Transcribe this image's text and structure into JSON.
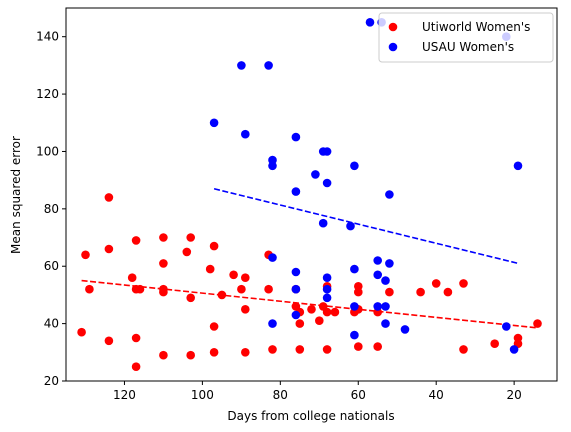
{
  "chart_data": {
    "type": "scatter",
    "title": "",
    "xlabel": "Days from college nationals",
    "ylabel": "Mean squared error",
    "xlim": [
      135,
      9
    ],
    "ylim": [
      20,
      150
    ],
    "x_inverted": true,
    "x_ticks": [
      120,
      100,
      80,
      60,
      40,
      20
    ],
    "y_ticks": [
      20,
      40,
      60,
      80,
      100,
      120,
      140
    ],
    "grid": false,
    "legend_position": "top-right",
    "series": [
      {
        "name": "Utiworld Women's",
        "color": "#ff0000",
        "points": [
          [
            131,
            37
          ],
          [
            130,
            64
          ],
          [
            129,
            52
          ],
          [
            124,
            84
          ],
          [
            124,
            66
          ],
          [
            124,
            34
          ],
          [
            118,
            56
          ],
          [
            117,
            69
          ],
          [
            117,
            52
          ],
          [
            117,
            35
          ],
          [
            117,
            25
          ],
          [
            116,
            52
          ],
          [
            110,
            70
          ],
          [
            110,
            61
          ],
          [
            110,
            52
          ],
          [
            110,
            51
          ],
          [
            110,
            29
          ],
          [
            104,
            65
          ],
          [
            103,
            70
          ],
          [
            103,
            49
          ],
          [
            103,
            29
          ],
          [
            98,
            59
          ],
          [
            97,
            67
          ],
          [
            97,
            39
          ],
          [
            97,
            30
          ],
          [
            95,
            50
          ],
          [
            92,
            57
          ],
          [
            90,
            52
          ],
          [
            89,
            56
          ],
          [
            89,
            45
          ],
          [
            89,
            30
          ],
          [
            83,
            64
          ],
          [
            83,
            52
          ],
          [
            82,
            31
          ],
          [
            76,
            52
          ],
          [
            76,
            46
          ],
          [
            75,
            44
          ],
          [
            75,
            40
          ],
          [
            75,
            31
          ],
          [
            72,
            45
          ],
          [
            70,
            41
          ],
          [
            69,
            46
          ],
          [
            68,
            44
          ],
          [
            68,
            53
          ],
          [
            68,
            31
          ],
          [
            66,
            44
          ],
          [
            61,
            44
          ],
          [
            60,
            53
          ],
          [
            60,
            51
          ],
          [
            60,
            45
          ],
          [
            60,
            32
          ],
          [
            55,
            44
          ],
          [
            55,
            32
          ],
          [
            52,
            51
          ],
          [
            44,
            51
          ],
          [
            40,
            54
          ],
          [
            37,
            51
          ],
          [
            33,
            54
          ],
          [
            33,
            31
          ],
          [
            25,
            33
          ],
          [
            19,
            35
          ],
          [
            19,
            33
          ],
          [
            14,
            40
          ]
        ],
        "trend": {
          "x": [
            131,
            14
          ],
          "y": [
            55,
            38.5
          ]
        }
      },
      {
        "name": "USAU Women's",
        "color": "#0000ff",
        "points": [
          [
            97,
            110
          ],
          [
            90,
            130
          ],
          [
            89,
            106
          ],
          [
            83,
            130
          ],
          [
            82,
            97
          ],
          [
            82,
            95
          ],
          [
            82,
            63
          ],
          [
            82,
            40
          ],
          [
            76,
            105
          ],
          [
            76,
            86
          ],
          [
            76,
            58
          ],
          [
            76,
            52
          ],
          [
            76,
            43
          ],
          [
            71,
            92
          ],
          [
            69,
            100
          ],
          [
            68,
            100
          ],
          [
            68,
            89
          ],
          [
            68,
            56
          ],
          [
            68,
            52
          ],
          [
            68,
            49
          ],
          [
            69,
            75
          ],
          [
            62,
            74
          ],
          [
            61,
            95
          ],
          [
            61,
            59
          ],
          [
            61,
            46
          ],
          [
            61,
            36
          ],
          [
            57,
            145
          ],
          [
            55,
            62
          ],
          [
            55,
            57
          ],
          [
            55,
            46
          ],
          [
            54,
            145
          ],
          [
            53,
            55
          ],
          [
            53,
            46
          ],
          [
            53,
            40
          ],
          [
            52,
            61
          ],
          [
            52,
            85
          ],
          [
            48,
            38
          ],
          [
            22,
            140
          ],
          [
            22,
            39
          ],
          [
            20,
            31
          ],
          [
            19,
            95
          ]
        ],
        "trend": {
          "x": [
            97,
            19
          ],
          "y": [
            87,
            61
          ]
        }
      }
    ]
  }
}
